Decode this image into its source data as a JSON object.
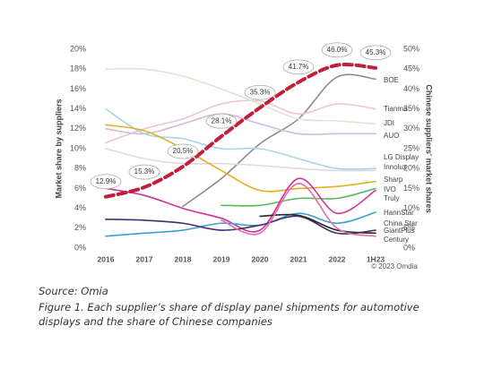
{
  "chart_data": {
    "type": "line",
    "categories": [
      "2016",
      "2017",
      "2018",
      "2019",
      "2020",
      "2021",
      "2022",
      "1H23"
    ],
    "ylabel": "Market share by suppliers",
    "y2label": "Chinese suppliers' market shares",
    "ylim": [
      0,
      20
    ],
    "yticks": [
      {
        "value": 0,
        "label": "0%"
      },
      {
        "value": 2,
        "label": "2%"
      },
      {
        "value": 4,
        "label": "4%"
      },
      {
        "value": 6,
        "label": "6%"
      },
      {
        "value": 8,
        "label": "8%"
      },
      {
        "value": 10,
        "label": "10%"
      },
      {
        "value": 12,
        "label": "12%"
      },
      {
        "value": 14,
        "label": "14%"
      },
      {
        "value": 16,
        "label": "16%"
      },
      {
        "value": 18,
        "label": "18%"
      },
      {
        "value": 20,
        "label": "20%"
      }
    ],
    "y2lim": [
      0,
      50
    ],
    "y2ticks": [
      {
        "value": 0,
        "label": "0%"
      },
      {
        "value": 5,
        "label": "5%"
      },
      {
        "value": 10,
        "label": "10%"
      },
      {
        "value": 15,
        "label": "15%"
      },
      {
        "value": 20,
        "label": "20%"
      },
      {
        "value": 25,
        "label": "25%"
      },
      {
        "value": 30,
        "label": "30%"
      },
      {
        "value": 35,
        "label": "35%"
      },
      {
        "value": 40,
        "label": "40%"
      },
      {
        "value": 45,
        "label": "45%"
      },
      {
        "value": 50,
        "label": "50%"
      }
    ],
    "series": [
      {
        "name": "BOE",
        "color": "#8c8c8c",
        "values": [
          null,
          null,
          4.2,
          7,
          10.5,
          13,
          17.2,
          17
        ]
      },
      {
        "name": "Tianma",
        "color": "#e8c8d0",
        "values": [
          10.6,
          12,
          13,
          14.5,
          14.8,
          13.5,
          14.5,
          14
        ]
      },
      {
        "name": "JDI",
        "color": "#e6e2d2",
        "values": [
          18,
          18,
          17.3,
          16,
          14.5,
          13,
          12.8,
          12.5
        ]
      },
      {
        "name": "AUO",
        "color": "#d4b8dc",
        "values": [
          12,
          11.5,
          12.5,
          13.5,
          12.5,
          11.5,
          11.5,
          11.5
        ]
      },
      {
        "name": "LG Display",
        "color": "#a8d4e8",
        "values": [
          14,
          11.5,
          11,
          10,
          10,
          9,
          8,
          8
        ]
      },
      {
        "name": "Innolux",
        "color": "#dcdcdc",
        "values": [
          10,
          9,
          8.5,
          8.5,
          8.3,
          8,
          7.8,
          7.8
        ]
      },
      {
        "name": "Sharp",
        "color": "#e0b020",
        "values": [
          12.4,
          11.8,
          10,
          7.8,
          5.8,
          6,
          6.2,
          6.7
        ]
      },
      {
        "name": "IVO",
        "color": "#5cb85c",
        "values": [
          null,
          null,
          null,
          4.3,
          4.3,
          5,
          5,
          6
        ]
      },
      {
        "name": "Truly",
        "color": "#d0309a",
        "values": [
          6,
          5.3,
          4,
          3,
          1.8,
          7,
          3.5,
          5.8
        ]
      },
      {
        "name": "HannStar",
        "color": "#3aa0d0",
        "values": [
          1.2,
          1.5,
          1.8,
          2.5,
          2.3,
          3.5,
          2.5,
          3.6
        ]
      },
      {
        "name": "China Star",
        "color": "#4a2a70",
        "values": [
          2.9,
          2.8,
          2.5,
          1.8,
          2.3,
          3.2,
          1.5,
          1.8
        ]
      },
      {
        "name": "GiantPlus",
        "color": "#2a2a2a",
        "values": [
          null,
          null,
          null,
          null,
          3.2,
          3.3,
          1.8,
          1.5
        ]
      },
      {
        "name": "Century",
        "color": "#e070b0",
        "values": [
          null,
          null,
          null,
          2.8,
          1.5,
          6.5,
          2,
          1.2
        ]
      },
      {
        "name": "Chinese suppliers",
        "color": "#c0203a",
        "axis": "y2",
        "values": [
          12.9,
          15.3,
          20.5,
          28.1,
          35.3,
          41.7,
          46.0,
          45.3
        ],
        "value_labels": [
          "12.9%",
          "15.3%",
          "20.5%",
          "28.1%",
          "35.3%",
          "41.7%",
          "46.0%",
          "45.3%"
        ]
      }
    ],
    "credit": "© 2023 Omdia",
    "source": "Source: Omia",
    "caption_line1": "Figure 1. Each supplier’s share of display panel shipments for automotive",
    "caption_line2": "displays and the share of Chinese companies"
  }
}
